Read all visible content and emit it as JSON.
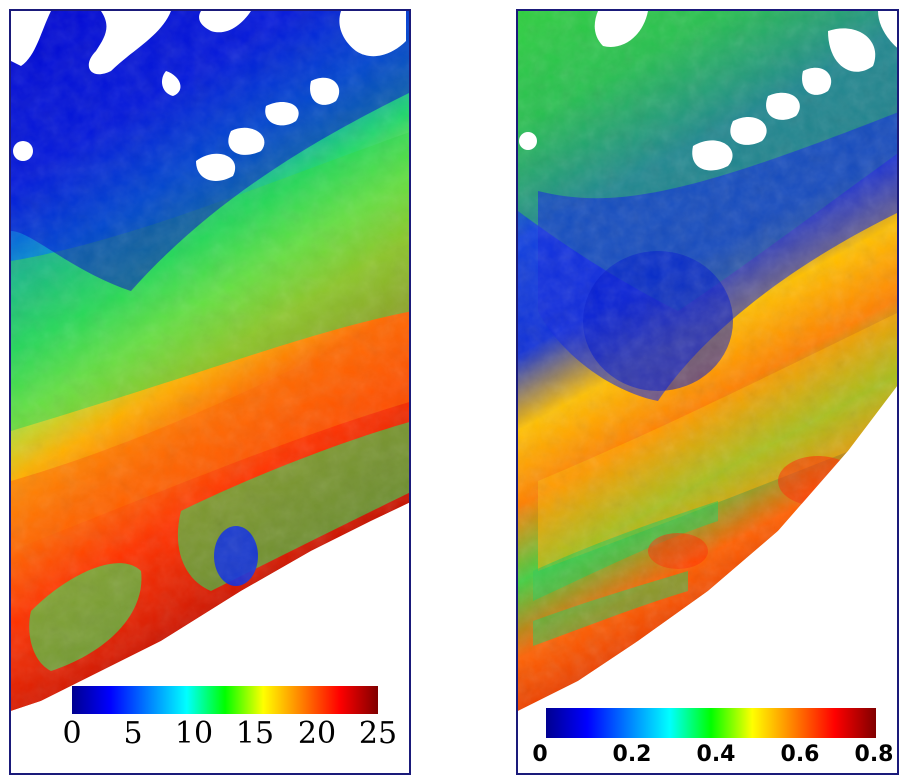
{
  "left_map": {
    "colorbar_ticks": [
      "0",
      "5",
      "10",
      "15",
      "20",
      "25"
    ],
    "colorbar_range": [
      0,
      25
    ]
  },
  "right_map": {
    "colorbar_ticks": [
      "0",
      "0.2",
      "0.4",
      "0.6",
      "0.8"
    ],
    "colorbar_range": [
      0,
      0.8
    ]
  },
  "colormap": [
    "#00008f",
    "#0000ff",
    "#0080ff",
    "#00ffff",
    "#00ff00",
    "#ffff00",
    "#ff8000",
    "#ff0000",
    "#800000"
  ]
}
